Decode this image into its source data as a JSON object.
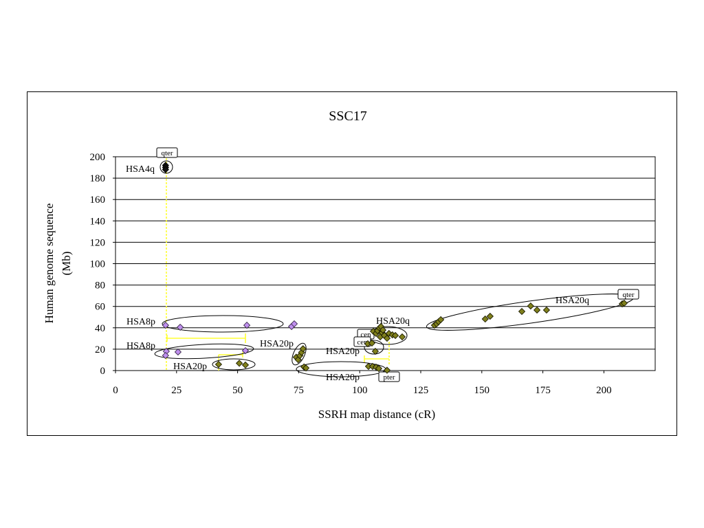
{
  "chart_data": {
    "type": "scatter",
    "title": "SSC17",
    "xlabel": "SSRH map distance (cR)",
    "ylabel": [
      "Human genome sequence",
      "(Mb)"
    ],
    "xlim": [
      0,
      221
    ],
    "ylim": [
      0,
      200
    ],
    "xticks": [
      0,
      25,
      50,
      75,
      100,
      125,
      150,
      175,
      200
    ],
    "yticks": [
      0,
      20,
      40,
      60,
      80,
      100,
      120,
      140,
      160,
      180,
      200
    ],
    "grid": "horizontal",
    "grid_color": "#000000",
    "legend": "none",
    "marker": "diamond",
    "series": [
      {
        "color": "#111111",
        "edgecolor": "#000000",
        "points": [
          [
            20.5,
            192.0
          ],
          [
            20.5,
            190.0
          ],
          [
            20.5,
            188.0
          ]
        ]
      },
      {
        "color": "#bf8fee",
        "edgecolor": "#3a2a4a",
        "points": [
          [
            20.5,
            42.4
          ],
          [
            26.5,
            40.5
          ],
          [
            53.8,
            42.4
          ],
          [
            72.1,
            41.2
          ],
          [
            73.2,
            43.7
          ],
          [
            20.8,
            18.0
          ],
          [
            20.5,
            14.1
          ],
          [
            25.6,
            17.4
          ],
          [
            53.2,
            18.6
          ]
        ]
      },
      {
        "color": "#80801c",
        "edgecolor": "#1a1a00",
        "points": [
          [
            42.2,
            5.8
          ],
          [
            50.7,
            6.8
          ],
          [
            53.2,
            5.2
          ],
          [
            74.0,
            12.5
          ],
          [
            74.8,
            10.2
          ],
          [
            75.5,
            14.0
          ],
          [
            76.2,
            17.0
          ],
          [
            76.8,
            20.4
          ],
          [
            77.2,
            3.4
          ],
          [
            78.0,
            2.4
          ],
          [
            103.6,
            3.9
          ],
          [
            105.3,
            3.9
          ],
          [
            106.7,
            3.2
          ],
          [
            107.8,
            1.9
          ],
          [
            111.2,
            0.3
          ],
          [
            103.3,
            25.1
          ],
          [
            105.0,
            25.7
          ],
          [
            106.4,
            18.0
          ],
          [
            105.6,
            36.7
          ],
          [
            106.7,
            34.7
          ],
          [
            107.3,
            37.3
          ],
          [
            108.1,
            39.9
          ],
          [
            108.7,
            41.2
          ],
          [
            109.2,
            35.4
          ],
          [
            109.5,
            37.9
          ],
          [
            108.4,
            31.5
          ],
          [
            110.1,
            32.8
          ],
          [
            111.2,
            30.2
          ],
          [
            112.0,
            34.7
          ],
          [
            113.4,
            33.4
          ],
          [
            114.6,
            32.8
          ],
          [
            117.4,
            31.5
          ],
          [
            130.6,
            42.4
          ],
          [
            131.5,
            43.7
          ],
          [
            132.3,
            45.7
          ],
          [
            133.2,
            47.6
          ],
          [
            151.4,
            48.2
          ],
          [
            153.4,
            50.8
          ],
          [
            166.4,
            55.3
          ],
          [
            170.0,
            60.4
          ],
          [
            172.6,
            56.6
          ],
          [
            176.5,
            56.6
          ],
          [
            207.5,
            62.4
          ],
          [
            208.3,
            63.0
          ]
        ]
      }
    ],
    "cluster_outline_color": "#000000",
    "guide_line_color": "#ffff33",
    "annotations": [
      {
        "text": "qter",
        "boxed": true
      },
      {
        "text": "HSA4q",
        "boxed": false
      },
      {
        "text": "HSA8p",
        "boxed": false
      },
      {
        "text": "HSA8p",
        "boxed": false
      },
      {
        "text": "HSA20p",
        "boxed": false
      },
      {
        "text": "HSA20p",
        "boxed": false
      },
      {
        "text": "HSA20q",
        "boxed": false
      },
      {
        "text": "cen",
        "boxed": true
      },
      {
        "text": "cen",
        "boxed": true
      },
      {
        "text": "HSA20p",
        "boxed": false
      },
      {
        "text": "HSA20p",
        "boxed": false
      },
      {
        "text": "pter",
        "boxed": true
      },
      {
        "text": "HSA20q",
        "boxed": false
      },
      {
        "text": "qter",
        "boxed": true
      }
    ]
  }
}
